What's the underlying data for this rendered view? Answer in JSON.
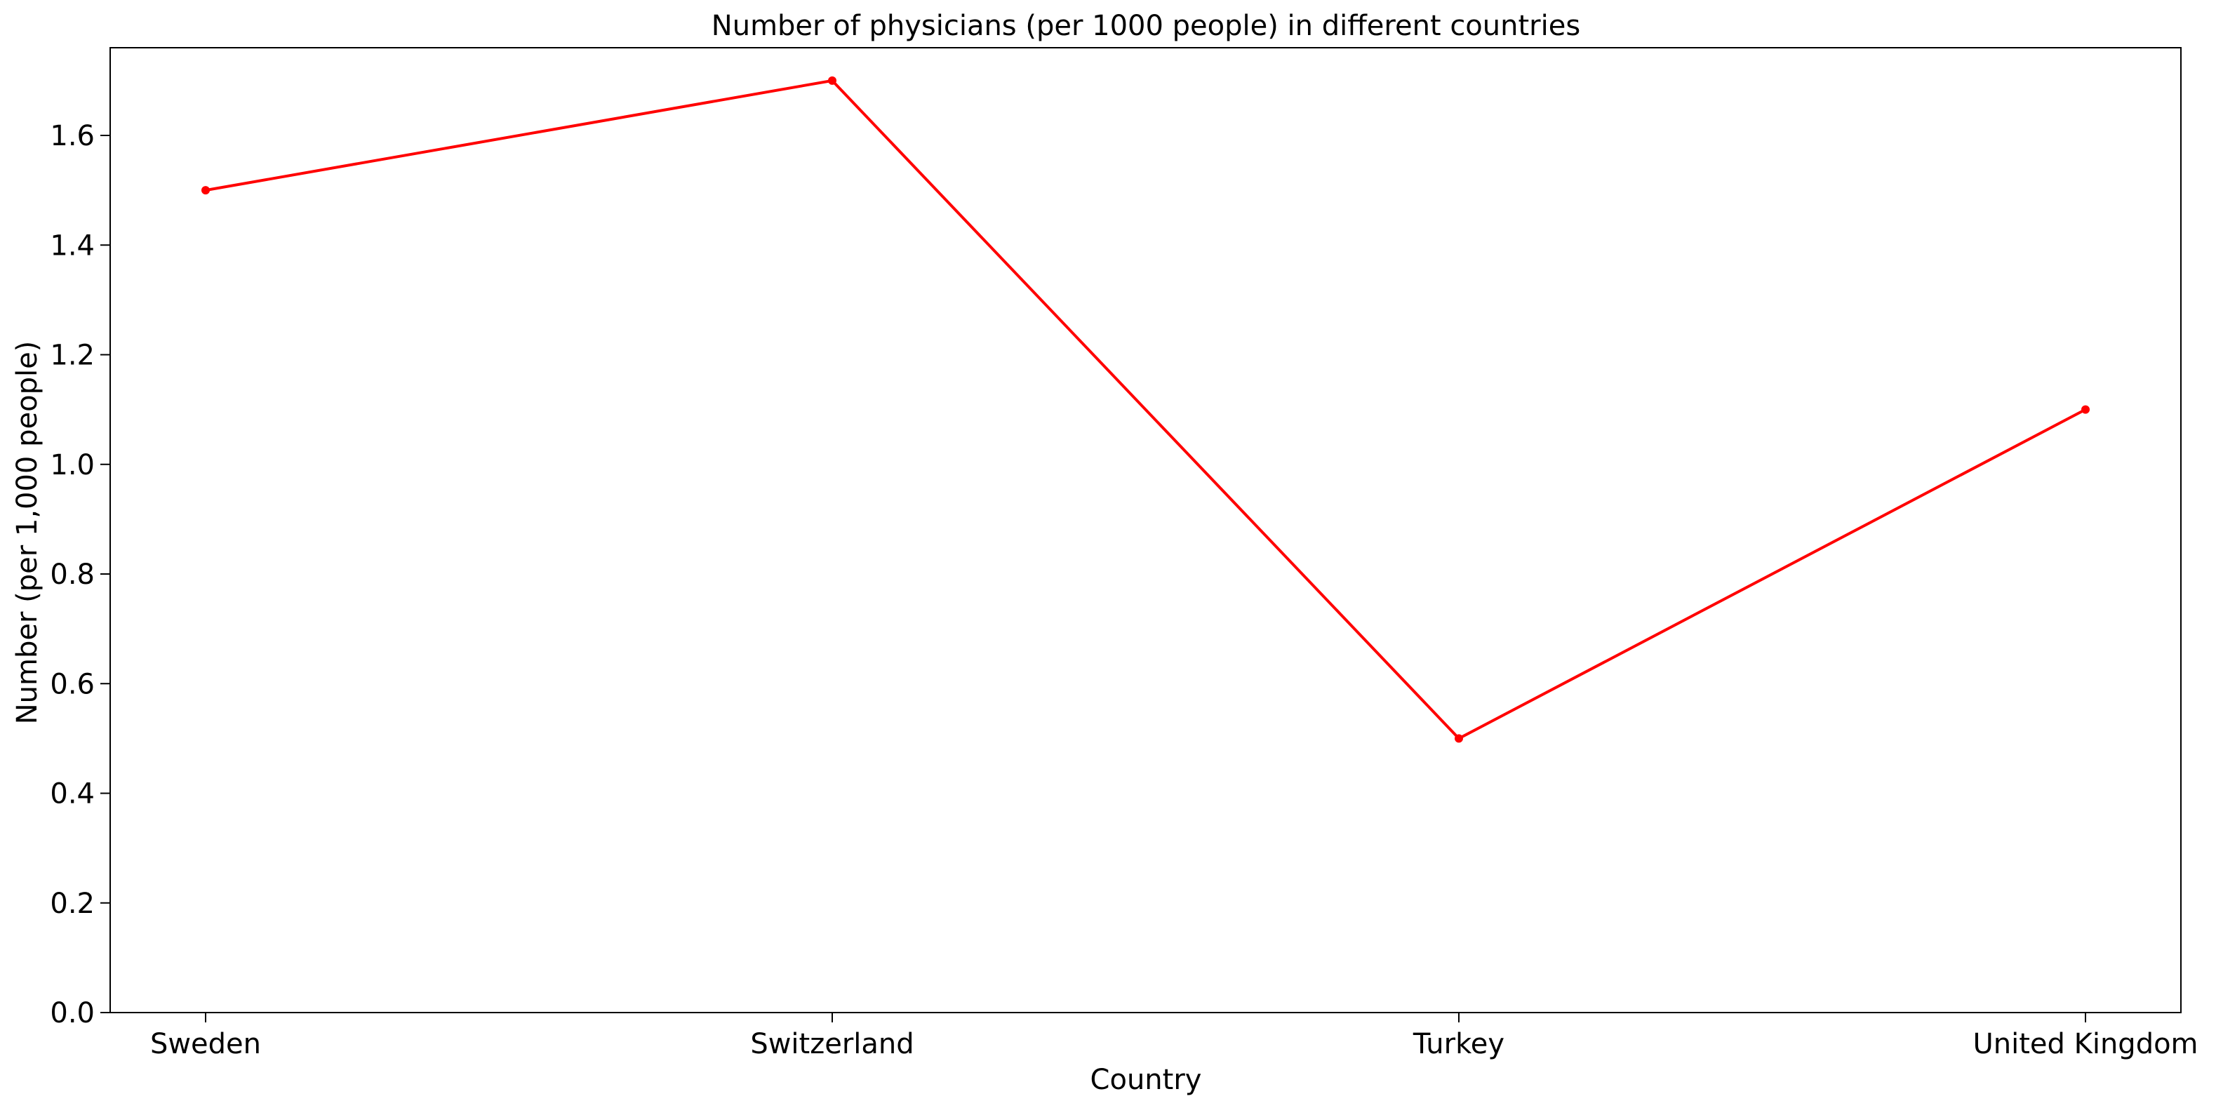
{
  "chart_data": {
    "type": "line",
    "title": "Number of physicians (per 1000 people) in different countries",
    "xlabel": "Country",
    "ylabel": "Number (per 1,000 people)",
    "categories": [
      "Sweden",
      "Switzerland",
      "Turkey",
      "United Kingdom"
    ],
    "series": [
      {
        "values": [
          1.5,
          1.7,
          0.5,
          1.1
        ],
        "color": "#ff0000",
        "marker": "circle"
      }
    ],
    "ylim": [
      0,
      1.76
    ],
    "yticks": [
      0.0,
      0.2,
      0.4,
      0.6,
      0.8,
      1.0,
      1.2,
      1.4,
      1.6
    ],
    "ytick_labels": [
      "0.0",
      "0.2",
      "0.4",
      "0.6",
      "0.8",
      "1.0",
      "1.2",
      "1.4",
      "1.6"
    ],
    "grid": false,
    "legend": "none"
  }
}
